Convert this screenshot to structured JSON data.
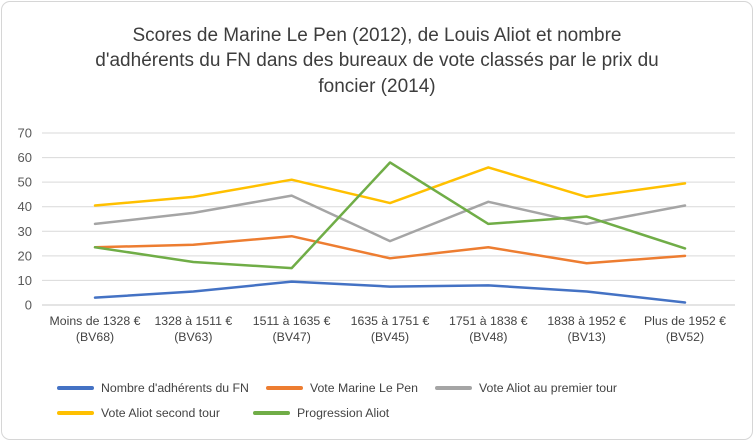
{
  "window": {
    "background_color": "#ffffff",
    "border_color": "#d6d6d6"
  },
  "chart_data": {
    "type": "line",
    "title": "Scores de Marine Le Pen (2012), de Louis Aliot et nombre d'adhérents du FN dans des bureaux de vote classés par le prix du foncier (2014)",
    "categories": [
      "Moins de 1328 € (BV68)",
      "1328 à 1511 € (BV63)",
      "1511 à 1635 € (BV47)",
      "1635 à 1751 € (BV45)",
      "1751 à 1838 € (BV48)",
      "1838 à 1952 € (BV13)",
      "Plus de 1952 € (BV52)"
    ],
    "series": [
      {
        "name": "Nombre d'adhérents du FN",
        "color": "#4472C4",
        "values": [
          3,
          5.5,
          9.5,
          7.5,
          8,
          5.5,
          1
        ]
      },
      {
        "name": "Vote Marine Le Pen",
        "color": "#ED7D31",
        "values": [
          23.5,
          24.5,
          28,
          19,
          23.5,
          17,
          20
        ]
      },
      {
        "name": "Vote Aliot au premier tour",
        "color": "#A5A5A5",
        "values": [
          33,
          37.5,
          44.5,
          26,
          42,
          33,
          40.5
        ]
      },
      {
        "name": "Vote Aliot second tour",
        "color": "#FFC000",
        "values": [
          40.5,
          44,
          51,
          41.5,
          56,
          44,
          49.5
        ]
      },
      {
        "name": "Progression Aliot",
        "color": "#70AD47",
        "values": [
          23.5,
          17.5,
          15,
          58,
          33,
          36,
          23
        ]
      }
    ],
    "xlabel": "",
    "ylabel": "",
    "ylim": [
      0,
      70
    ],
    "yticks": [
      0,
      10,
      20,
      30,
      40,
      50,
      60,
      70
    ],
    "grid": true,
    "gridline_color": "#d9d9d9",
    "axis_label_color": "#595959",
    "legend_position": "bottom",
    "legend_rows": [
      [
        0,
        1,
        2
      ],
      [
        3,
        4
      ]
    ]
  }
}
